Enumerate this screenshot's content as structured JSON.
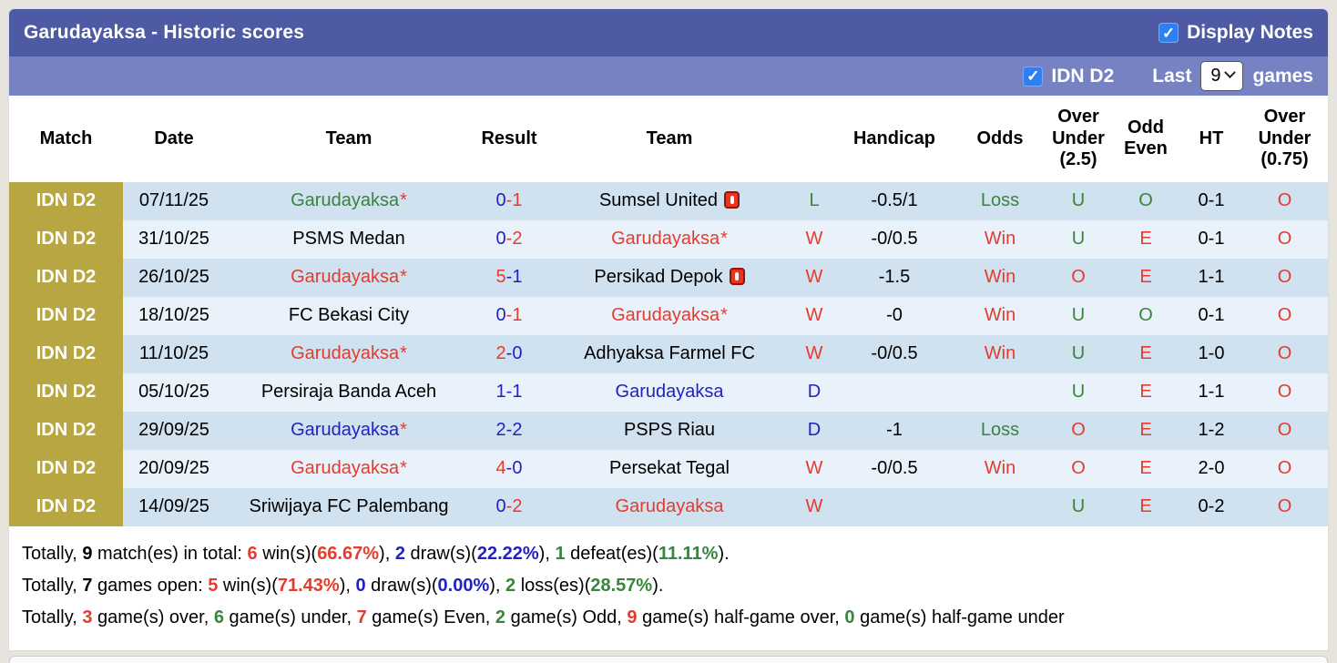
{
  "header": {
    "title": "Garudayaksa - Historic scores",
    "display_notes_label": "Display Notes",
    "display_notes_checked": true,
    "league_label": "IDN D2",
    "league_checked": true,
    "last_label": "Last",
    "last_n_value": "9",
    "games_label": "games"
  },
  "colors": {
    "page_bg": "#e7e4dd",
    "header_dark": "#4e5ba4",
    "header_light": "#7682c2",
    "league_cell": "#b7a642",
    "row_odd": "#d0e1ef",
    "row_even": "#e9f2fa",
    "checkbox_blue": "#2e7ff2"
  },
  "palette": {
    "red": "#e53b2c",
    "green": "#38853b",
    "blue": "#2121c4",
    "black": "#000000"
  },
  "table": {
    "columns": [
      {
        "id": "match",
        "label": [
          "Match"
        ]
      },
      {
        "id": "date",
        "label": [
          "Date"
        ]
      },
      {
        "id": "team-home",
        "label": [
          "Team"
        ]
      },
      {
        "id": "result",
        "label": [
          "Result"
        ]
      },
      {
        "id": "team-away",
        "label": [
          "Team"
        ]
      },
      {
        "id": "wl",
        "label": [
          ""
        ]
      },
      {
        "id": "handicap",
        "label": [
          "Handicap"
        ]
      },
      {
        "id": "odds",
        "label": [
          "Odds"
        ]
      },
      {
        "id": "over-under-25",
        "label": [
          "Over",
          "Under",
          "(2.5)"
        ]
      },
      {
        "id": "odd-even",
        "label": [
          "Odd",
          "Even"
        ]
      },
      {
        "id": "ht",
        "label": [
          "HT"
        ]
      },
      {
        "id": "over-under-075",
        "label": [
          "Over",
          "Under",
          "(0.75)"
        ]
      }
    ],
    "rows": [
      {
        "league": "IDN D2",
        "date": "07/11/25",
        "home": {
          "name": "Garudayaksa",
          "star": true,
          "color": "green",
          "red_card": false
        },
        "result": {
          "home": "0",
          "away": "1",
          "home_color": "blue",
          "away_color": "red"
        },
        "away": {
          "name": "Sumsel United",
          "star": false,
          "color": "black",
          "red_card": true
        },
        "wl": {
          "text": "L",
          "color": "green"
        },
        "handicap": "-0.5/1",
        "odds": {
          "text": "Loss",
          "color": "green"
        },
        "ou25": {
          "text": "U",
          "color": "green"
        },
        "odd_even": {
          "text": "O",
          "color": "green"
        },
        "ht": "0-1",
        "ou075": {
          "text": "O",
          "color": "red"
        }
      },
      {
        "league": "IDN D2",
        "date": "31/10/25",
        "home": {
          "name": "PSMS Medan",
          "star": false,
          "color": "black",
          "red_card": false
        },
        "result": {
          "home": "0",
          "away": "2",
          "home_color": "blue",
          "away_color": "red"
        },
        "away": {
          "name": "Garudayaksa",
          "star": true,
          "color": "red",
          "red_card": false
        },
        "wl": {
          "text": "W",
          "color": "red"
        },
        "handicap": "-0/0.5",
        "odds": {
          "text": "Win",
          "color": "red"
        },
        "ou25": {
          "text": "U",
          "color": "green"
        },
        "odd_even": {
          "text": "E",
          "color": "red"
        },
        "ht": "0-1",
        "ou075": {
          "text": "O",
          "color": "red"
        }
      },
      {
        "league": "IDN D2",
        "date": "26/10/25",
        "home": {
          "name": "Garudayaksa",
          "star": true,
          "color": "red",
          "red_card": false
        },
        "result": {
          "home": "5",
          "away": "1",
          "home_color": "red",
          "away_color": "blue"
        },
        "away": {
          "name": "Persikad Depok",
          "star": false,
          "color": "black",
          "red_card": true
        },
        "wl": {
          "text": "W",
          "color": "red"
        },
        "handicap": "-1.5",
        "odds": {
          "text": "Win",
          "color": "red"
        },
        "ou25": {
          "text": "O",
          "color": "red"
        },
        "odd_even": {
          "text": "E",
          "color": "red"
        },
        "ht": "1-1",
        "ou075": {
          "text": "O",
          "color": "red"
        }
      },
      {
        "league": "IDN D2",
        "date": "18/10/25",
        "home": {
          "name": "FC Bekasi City",
          "star": false,
          "color": "black",
          "red_card": false
        },
        "result": {
          "home": "0",
          "away": "1",
          "home_color": "blue",
          "away_color": "red"
        },
        "away": {
          "name": "Garudayaksa",
          "star": true,
          "color": "red",
          "red_card": false
        },
        "wl": {
          "text": "W",
          "color": "red"
        },
        "handicap": "-0",
        "odds": {
          "text": "Win",
          "color": "red"
        },
        "ou25": {
          "text": "U",
          "color": "green"
        },
        "odd_even": {
          "text": "O",
          "color": "green"
        },
        "ht": "0-1",
        "ou075": {
          "text": "O",
          "color": "red"
        }
      },
      {
        "league": "IDN D2",
        "date": "11/10/25",
        "home": {
          "name": "Garudayaksa",
          "star": true,
          "color": "red",
          "red_card": false
        },
        "result": {
          "home": "2",
          "away": "0",
          "home_color": "red",
          "away_color": "blue"
        },
        "away": {
          "name": "Adhyaksa Farmel FC",
          "star": false,
          "color": "black",
          "red_card": false
        },
        "wl": {
          "text": "W",
          "color": "red"
        },
        "handicap": "-0/0.5",
        "odds": {
          "text": "Win",
          "color": "red"
        },
        "ou25": {
          "text": "U",
          "color": "green"
        },
        "odd_even": {
          "text": "E",
          "color": "red"
        },
        "ht": "1-0",
        "ou075": {
          "text": "O",
          "color": "red"
        }
      },
      {
        "league": "IDN D2",
        "date": "05/10/25",
        "home": {
          "name": "Persiraja Banda Aceh",
          "star": false,
          "color": "black",
          "red_card": false
        },
        "result": {
          "home": "1",
          "away": "1",
          "home_color": "blue",
          "away_color": "blue"
        },
        "away": {
          "name": "Garudayaksa",
          "star": false,
          "color": "blue",
          "red_card": false
        },
        "wl": {
          "text": "D",
          "color": "blue"
        },
        "handicap": "",
        "odds": {
          "text": "",
          "color": "black"
        },
        "ou25": {
          "text": "U",
          "color": "green"
        },
        "odd_even": {
          "text": "E",
          "color": "red"
        },
        "ht": "1-1",
        "ou075": {
          "text": "O",
          "color": "red"
        }
      },
      {
        "league": "IDN D2",
        "date": "29/09/25",
        "home": {
          "name": "Garudayaksa",
          "star": true,
          "color": "blue",
          "red_card": false
        },
        "result": {
          "home": "2",
          "away": "2",
          "home_color": "blue",
          "away_color": "blue"
        },
        "away": {
          "name": "PSPS Riau",
          "star": false,
          "color": "black",
          "red_card": false
        },
        "wl": {
          "text": "D",
          "color": "blue"
        },
        "handicap": "-1",
        "odds": {
          "text": "Loss",
          "color": "green"
        },
        "ou25": {
          "text": "O",
          "color": "red"
        },
        "odd_even": {
          "text": "E",
          "color": "red"
        },
        "ht": "1-2",
        "ou075": {
          "text": "O",
          "color": "red"
        }
      },
      {
        "league": "IDN D2",
        "date": "20/09/25",
        "home": {
          "name": "Garudayaksa",
          "star": true,
          "color": "red",
          "red_card": false
        },
        "result": {
          "home": "4",
          "away": "0",
          "home_color": "red",
          "away_color": "blue"
        },
        "away": {
          "name": "Persekat Tegal",
          "star": false,
          "color": "black",
          "red_card": false
        },
        "wl": {
          "text": "W",
          "color": "red"
        },
        "handicap": "-0/0.5",
        "odds": {
          "text": "Win",
          "color": "red"
        },
        "ou25": {
          "text": "O",
          "color": "red"
        },
        "odd_even": {
          "text": "E",
          "color": "red"
        },
        "ht": "2-0",
        "ou075": {
          "text": "O",
          "color": "red"
        }
      },
      {
        "league": "IDN D2",
        "date": "14/09/25",
        "home": {
          "name": "Sriwijaya FC Palembang",
          "star": false,
          "color": "black",
          "red_card": false
        },
        "result": {
          "home": "0",
          "away": "2",
          "home_color": "blue",
          "away_color": "red"
        },
        "away": {
          "name": "Garudayaksa",
          "star": false,
          "color": "red",
          "red_card": false
        },
        "wl": {
          "text": "W",
          "color": "red"
        },
        "handicap": "",
        "odds": {
          "text": "",
          "color": "black"
        },
        "ou25": {
          "text": "U",
          "color": "green"
        },
        "odd_even": {
          "text": "E",
          "color": "red"
        },
        "ht": "0-2",
        "ou075": {
          "text": "O",
          "color": "red"
        }
      }
    ]
  },
  "summary": [
    [
      {
        "text": "Totally, ",
        "color": "black",
        "bold": false
      },
      {
        "text": "9",
        "color": "black",
        "bold": true
      },
      {
        "text": " match(es) in total: ",
        "color": "black",
        "bold": false
      },
      {
        "text": "6",
        "color": "red",
        "bold": true
      },
      {
        "text": " win(s)(",
        "color": "black",
        "bold": false
      },
      {
        "text": "66.67%",
        "color": "red",
        "bold": true
      },
      {
        "text": "), ",
        "color": "black",
        "bold": false
      },
      {
        "text": "2",
        "color": "blue",
        "bold": true
      },
      {
        "text": " draw(s)(",
        "color": "black",
        "bold": false
      },
      {
        "text": "22.22%",
        "color": "blue",
        "bold": true
      },
      {
        "text": "), ",
        "color": "black",
        "bold": false
      },
      {
        "text": "1",
        "color": "green",
        "bold": true
      },
      {
        "text": " defeat(es)(",
        "color": "black",
        "bold": false
      },
      {
        "text": "11.11%",
        "color": "green",
        "bold": true
      },
      {
        "text": ").",
        "color": "black",
        "bold": false
      }
    ],
    [
      {
        "text": "Totally, ",
        "color": "black",
        "bold": false
      },
      {
        "text": "7",
        "color": "black",
        "bold": true
      },
      {
        "text": " games open: ",
        "color": "black",
        "bold": false
      },
      {
        "text": "5",
        "color": "red",
        "bold": true
      },
      {
        "text": " win(s)(",
        "color": "black",
        "bold": false
      },
      {
        "text": "71.43%",
        "color": "red",
        "bold": true
      },
      {
        "text": "), ",
        "color": "black",
        "bold": false
      },
      {
        "text": "0",
        "color": "blue",
        "bold": true
      },
      {
        "text": " draw(s)(",
        "color": "black",
        "bold": false
      },
      {
        "text": "0.00%",
        "color": "blue",
        "bold": true
      },
      {
        "text": "), ",
        "color": "black",
        "bold": false
      },
      {
        "text": "2",
        "color": "green",
        "bold": true
      },
      {
        "text": " loss(es)(",
        "color": "black",
        "bold": false
      },
      {
        "text": "28.57%",
        "color": "green",
        "bold": true
      },
      {
        "text": ").",
        "color": "black",
        "bold": false
      }
    ],
    [
      {
        "text": "Totally, ",
        "color": "black",
        "bold": false
      },
      {
        "text": "3",
        "color": "red",
        "bold": true
      },
      {
        "text": " game(s) over, ",
        "color": "black",
        "bold": false
      },
      {
        "text": "6",
        "color": "green",
        "bold": true
      },
      {
        "text": " game(s) under, ",
        "color": "black",
        "bold": false
      },
      {
        "text": "7",
        "color": "red",
        "bold": true
      },
      {
        "text": " game(s) Even, ",
        "color": "black",
        "bold": false
      },
      {
        "text": "2",
        "color": "green",
        "bold": true
      },
      {
        "text": " game(s) Odd, ",
        "color": "black",
        "bold": false
      },
      {
        "text": "9",
        "color": "red",
        "bold": true
      },
      {
        "text": " game(s) half-game over, ",
        "color": "black",
        "bold": false
      },
      {
        "text": "0",
        "color": "green",
        "bold": true
      },
      {
        "text": " game(s) half-game under",
        "color": "black",
        "bold": false
      }
    ]
  ]
}
